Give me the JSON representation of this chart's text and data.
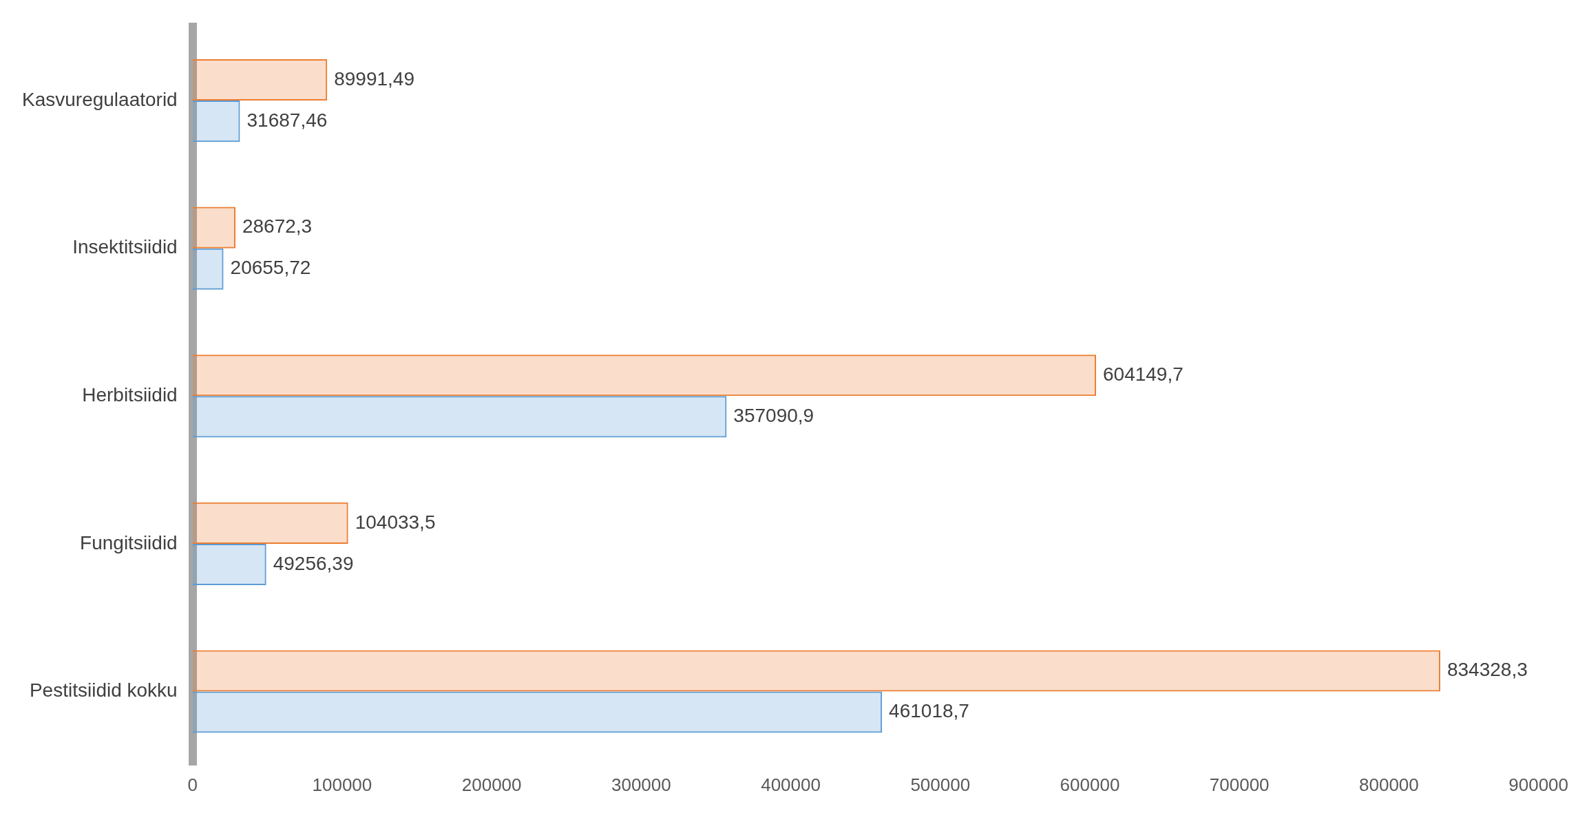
{
  "chart_data": {
    "type": "bar",
    "orientation": "horizontal",
    "categories": [
      "Kasvuregulaatorid",
      "Insektitsiidid",
      "Herbitsiidid",
      "Fungitsiidid",
      "Pestitsiidid kokku"
    ],
    "series": [
      {
        "color": "#ed7d31",
        "values": [
          89991.49,
          28672.3,
          604149.7,
          104033.5,
          834328.3
        ],
        "value_labels": [
          "89991,49",
          "28672,3",
          "604149,7",
          "104033,5",
          "834328,3"
        ]
      },
      {
        "color": "#5b9bd5",
        "values": [
          31687.46,
          20655.72,
          357090.9,
          49256.39,
          461018.7
        ],
        "value_labels": [
          "31687,46",
          "20655,72",
          "357090,9",
          "49256,39",
          "461018,7"
        ]
      }
    ],
    "xlim": [
      0,
      900000
    ],
    "xticks": [
      0,
      100000,
      200000,
      300000,
      400000,
      500000,
      600000,
      700000,
      800000,
      900000
    ],
    "grid": false,
    "legend": false
  }
}
